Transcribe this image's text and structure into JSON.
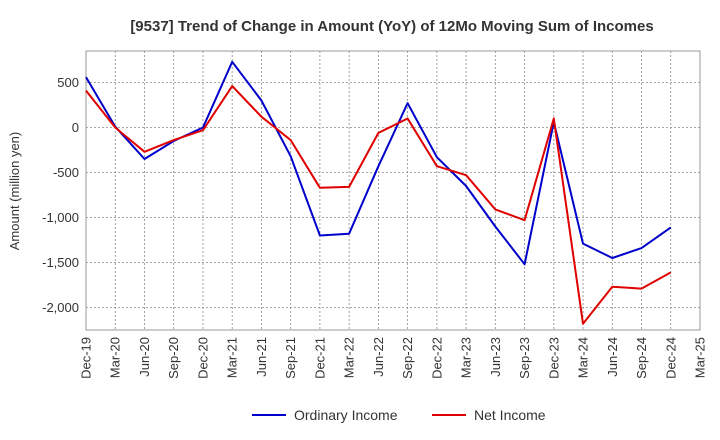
{
  "chart_data": {
    "type": "line",
    "title": "[9537]  Trend of Change in Amount (YoY) of 12Mo Moving Sum of Incomes",
    "xlabel": "",
    "ylabel": "Amount (million yen)",
    "ylim": [
      -2250,
      850
    ],
    "yticks": [
      500,
      0,
      -500,
      -1000,
      -1500,
      -2000
    ],
    "ytick_labels": [
      "500",
      "0",
      "-500",
      "-1,000",
      "-1,500",
      "-2,000"
    ],
    "categories": [
      "Dec-19",
      "Mar-20",
      "Jun-20",
      "Sep-20",
      "Dec-20",
      "Mar-21",
      "Jun-21",
      "Sep-21",
      "Dec-21",
      "Mar-22",
      "Jun-22",
      "Sep-22",
      "Dec-22",
      "Mar-23",
      "Jun-23",
      "Sep-23",
      "Dec-23",
      "Mar-24",
      "Jun-24",
      "Sep-24",
      "Dec-24",
      "Mar-25"
    ],
    "grid": true,
    "legend_position": "bottom-center",
    "series": [
      {
        "name": "Ordinary Income",
        "color": "#0000cc",
        "values": [
          560,
          10,
          -350,
          -150,
          0,
          730,
          300,
          -320,
          -1200,
          -1180,
          -430,
          270,
          -330,
          -650,
          -1100,
          -1520,
          60,
          -1290,
          -1450,
          -1340,
          -1110,
          null
        ]
      },
      {
        "name": "Net Income",
        "color": "#e00000",
        "values": [
          410,
          0,
          -270,
          -140,
          -30,
          460,
          120,
          -140,
          -670,
          -660,
          -60,
          100,
          -430,
          -530,
          -910,
          -1030,
          100,
          -2180,
          -1770,
          -1790,
          -1610,
          null
        ]
      }
    ]
  }
}
